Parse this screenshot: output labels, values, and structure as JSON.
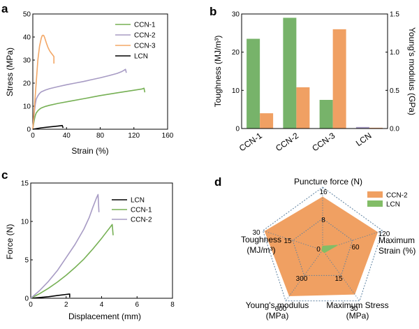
{
  "colors": {
    "CCN-1": "#76b054",
    "CCN-2": "#a79bc4",
    "CCN-3": "#f3a766",
    "LCN": "#000000",
    "bar_green": "#77b36a",
    "bar_orange": "#f0a063",
    "bar_purple": "#a79bc4",
    "radar_fill": "#f0a062",
    "radar_lcn": "#82bd67",
    "radar_grid": "#5a7f9f"
  },
  "chart_data": [
    {
      "panel_label": "a",
      "type": "line",
      "xlabel": "Strain (%)",
      "ylabel": "Stress (MPa)",
      "xlim": [
        0,
        160
      ],
      "ylim": [
        0,
        50
      ],
      "xticks": [
        "0",
        "40",
        "80",
        "120",
        "160"
      ],
      "yticks": [
        "0",
        "10",
        "20",
        "30",
        "40",
        "50"
      ],
      "legend": "top-right",
      "series": [
        {
          "name": "CCN-1",
          "x": [
            0,
            1,
            2,
            3,
            4,
            6,
            8,
            10,
            15,
            20,
            30,
            45,
            60,
            80,
            100,
            120,
            130,
            132,
            133
          ],
          "y": [
            0,
            2.5,
            4.5,
            6,
            7,
            8,
            8.7,
            9.2,
            9.9,
            10.4,
            11.2,
            12.2,
            13.2,
            14.6,
            15.8,
            16.9,
            17.5,
            17.8,
            16
          ]
        },
        {
          "name": "CCN-2",
          "x": [
            0,
            1,
            2,
            3,
            4,
            6,
            8,
            10,
            15,
            20,
            30,
            40,
            50,
            60,
            70,
            80,
            90,
            100,
            105,
            108,
            110,
            111
          ],
          "y": [
            0,
            4,
            8,
            11,
            13,
            14.5,
            15.5,
            16.2,
            17,
            17.6,
            18.5,
            19.3,
            20,
            20.7,
            21.5,
            22.3,
            23.2,
            24.2,
            24.9,
            25.5,
            26,
            24.5
          ]
        },
        {
          "name": "CCN-3",
          "x": [
            0,
            1,
            2,
            4,
            6,
            8,
            10,
            11,
            12,
            13,
            14,
            16,
            18,
            20,
            22,
            24,
            25,
            25
          ],
          "y": [
            0,
            5,
            10,
            20,
            30,
            36,
            39.5,
            40.5,
            40.8,
            40.6,
            39.8,
            37.5,
            35.5,
            34,
            33,
            32,
            31.5,
            28.5
          ]
        },
        {
          "name": "LCN",
          "x": [
            0,
            5,
            10,
            20,
            30,
            35,
            36
          ],
          "y": [
            0,
            0.3,
            0.6,
            1.0,
            1.4,
            1.6,
            0.5
          ]
        }
      ]
    },
    {
      "panel_label": "b",
      "type": "bar",
      "categories": [
        "CCN-1",
        "CCN-2",
        "CCN-3",
        "LCN"
      ],
      "ylabel": "Toughness (MJ/m³)",
      "y2label": "Young's modulus (GPa)",
      "ylim": [
        0,
        30
      ],
      "y2lim": [
        0,
        1.5
      ],
      "yticks": [
        "0",
        "10",
        "20",
        "30"
      ],
      "y2ticks": [
        "0.0",
        "0.5",
        "1.0",
        "1.5"
      ],
      "series": [
        {
          "axis": "left",
          "values": [
            23.5,
            29,
            7.5,
            0.4
          ]
        },
        {
          "axis": "right",
          "values": [
            0.2,
            0.54,
            1.3,
            0.01
          ]
        }
      ]
    },
    {
      "panel_label": "c",
      "type": "line",
      "xlabel": "Displacement (mm)",
      "ylabel": "Force (N)",
      "xlim": [
        0,
        8
      ],
      "ylim": [
        0,
        15
      ],
      "xticks": [
        "0",
        "2",
        "4",
        "6",
        "8"
      ],
      "yticks": [
        "0",
        "5",
        "10",
        "15"
      ],
      "legend": "top-right",
      "series": [
        {
          "name": "LCN",
          "x": [
            0,
            0.5,
            1,
            1.5,
            2,
            2.2,
            2.2
          ],
          "y": [
            0,
            0.1,
            0.2,
            0.35,
            0.5,
            0.55,
            0.1
          ]
        },
        {
          "name": "CCN-1",
          "x": [
            0,
            0.5,
            1,
            1.5,
            2,
            2.5,
            3,
            3.5,
            4,
            4.3,
            4.5,
            4.6,
            4.65
          ],
          "y": [
            0,
            0.6,
            1.3,
            2.1,
            3,
            4,
            5.1,
            6.4,
            7.8,
            8.7,
            9.3,
            9.6,
            8.2
          ]
        },
        {
          "name": "CCN-2",
          "x": [
            0,
            0.5,
            1,
            1.5,
            2,
            2.5,
            3,
            3.3,
            3.5,
            3.7,
            3.8,
            3.85
          ],
          "y": [
            0,
            1,
            2.2,
            3.6,
            5.3,
            7,
            9,
            10.5,
            11.8,
            13,
            13.5,
            11.2
          ]
        }
      ]
    },
    {
      "panel_label": "d",
      "type": "radar",
      "axes": [
        {
          "label": "Puncture force (N)",
          "max": 16,
          "ticks": [
            "0",
            "8",
            "16"
          ],
          "lines": 1
        },
        {
          "label": "Maximum\nStrain (%)",
          "max": 120,
          "ticks": [
            "60",
            "120"
          ],
          "lines": 2
        },
        {
          "label": "Maximum Stress\n(MPa)",
          "max": 30,
          "ticks": [
            "15",
            "30"
          ],
          "lines": 2
        },
        {
          "label": "Young's modulus\n(MPa)",
          "max": 600,
          "ticks": [
            "300",
            "600"
          ],
          "lines": 2
        },
        {
          "label": "Toughness\n(MJ/m³)",
          "max": 30,
          "ticks": [
            "15",
            "30"
          ],
          "lines": 2
        }
      ],
      "legend": "top-right",
      "series": [
        {
          "name": "CCN-2",
          "values": [
            13.5,
            110,
            26,
            540,
            29
          ]
        },
        {
          "name": "LCN",
          "values": [
            1,
            30,
            1.5,
            10,
            0.4
          ]
        }
      ]
    }
  ]
}
